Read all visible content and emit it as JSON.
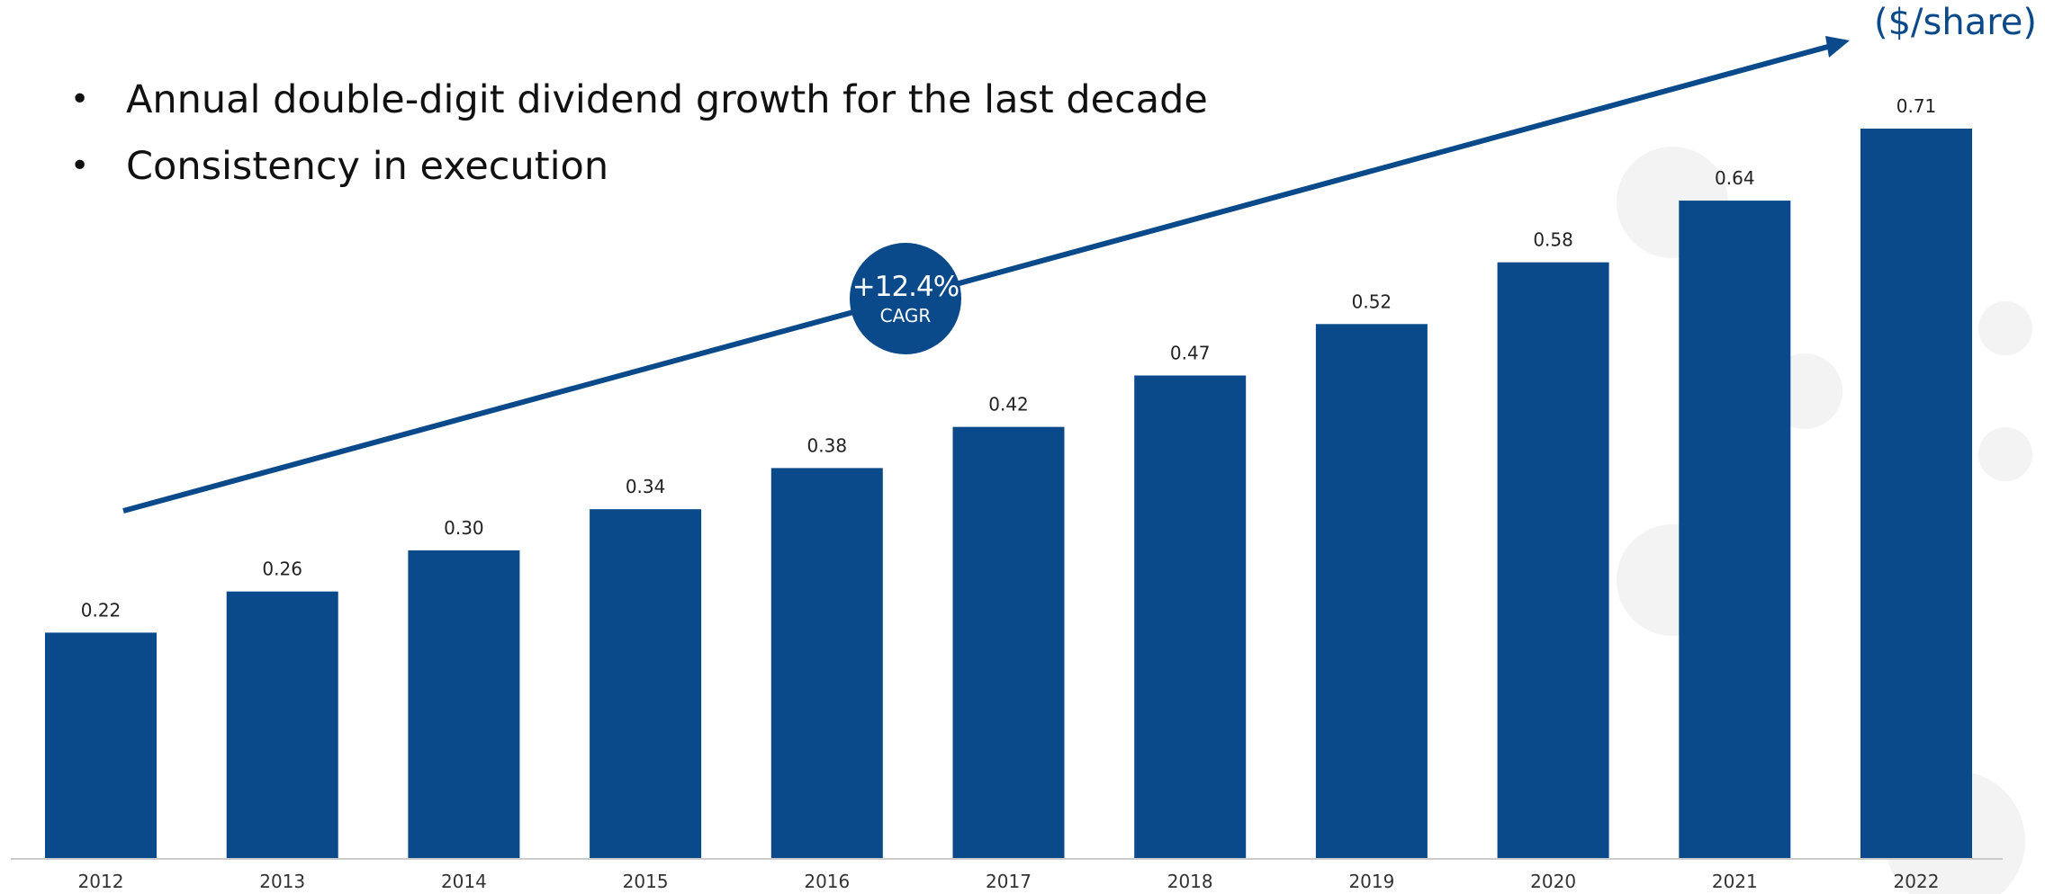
{
  "bullets": [
    "Annual double-digit dividend growth for the last decade",
    "Consistency in execution"
  ],
  "unit_label": "($/share)",
  "cagr": {
    "value": "+12.4%",
    "label": "CAGR"
  },
  "colors": {
    "bar": "#0a4a8a",
    "arrow": "#0a4a8a",
    "text": "#222222",
    "axis": "#cccccc"
  },
  "chart_data": {
    "type": "bar",
    "categories": [
      "2012",
      "2013",
      "2014",
      "2015",
      "2016",
      "2017",
      "2018",
      "2019",
      "2020",
      "2021",
      "2022"
    ],
    "values": [
      0.22,
      0.26,
      0.3,
      0.34,
      0.38,
      0.42,
      0.47,
      0.52,
      0.58,
      0.64,
      0.71
    ],
    "value_labels": [
      "0.22",
      "0.26",
      "0.30",
      "0.34",
      "0.38",
      "0.42",
      "0.47",
      "0.52",
      "0.58",
      "0.64",
      "0.71"
    ],
    "ylabel": "($/share)",
    "ylim": [
      0,
      0.71
    ],
    "grid": false,
    "legend": "none"
  }
}
